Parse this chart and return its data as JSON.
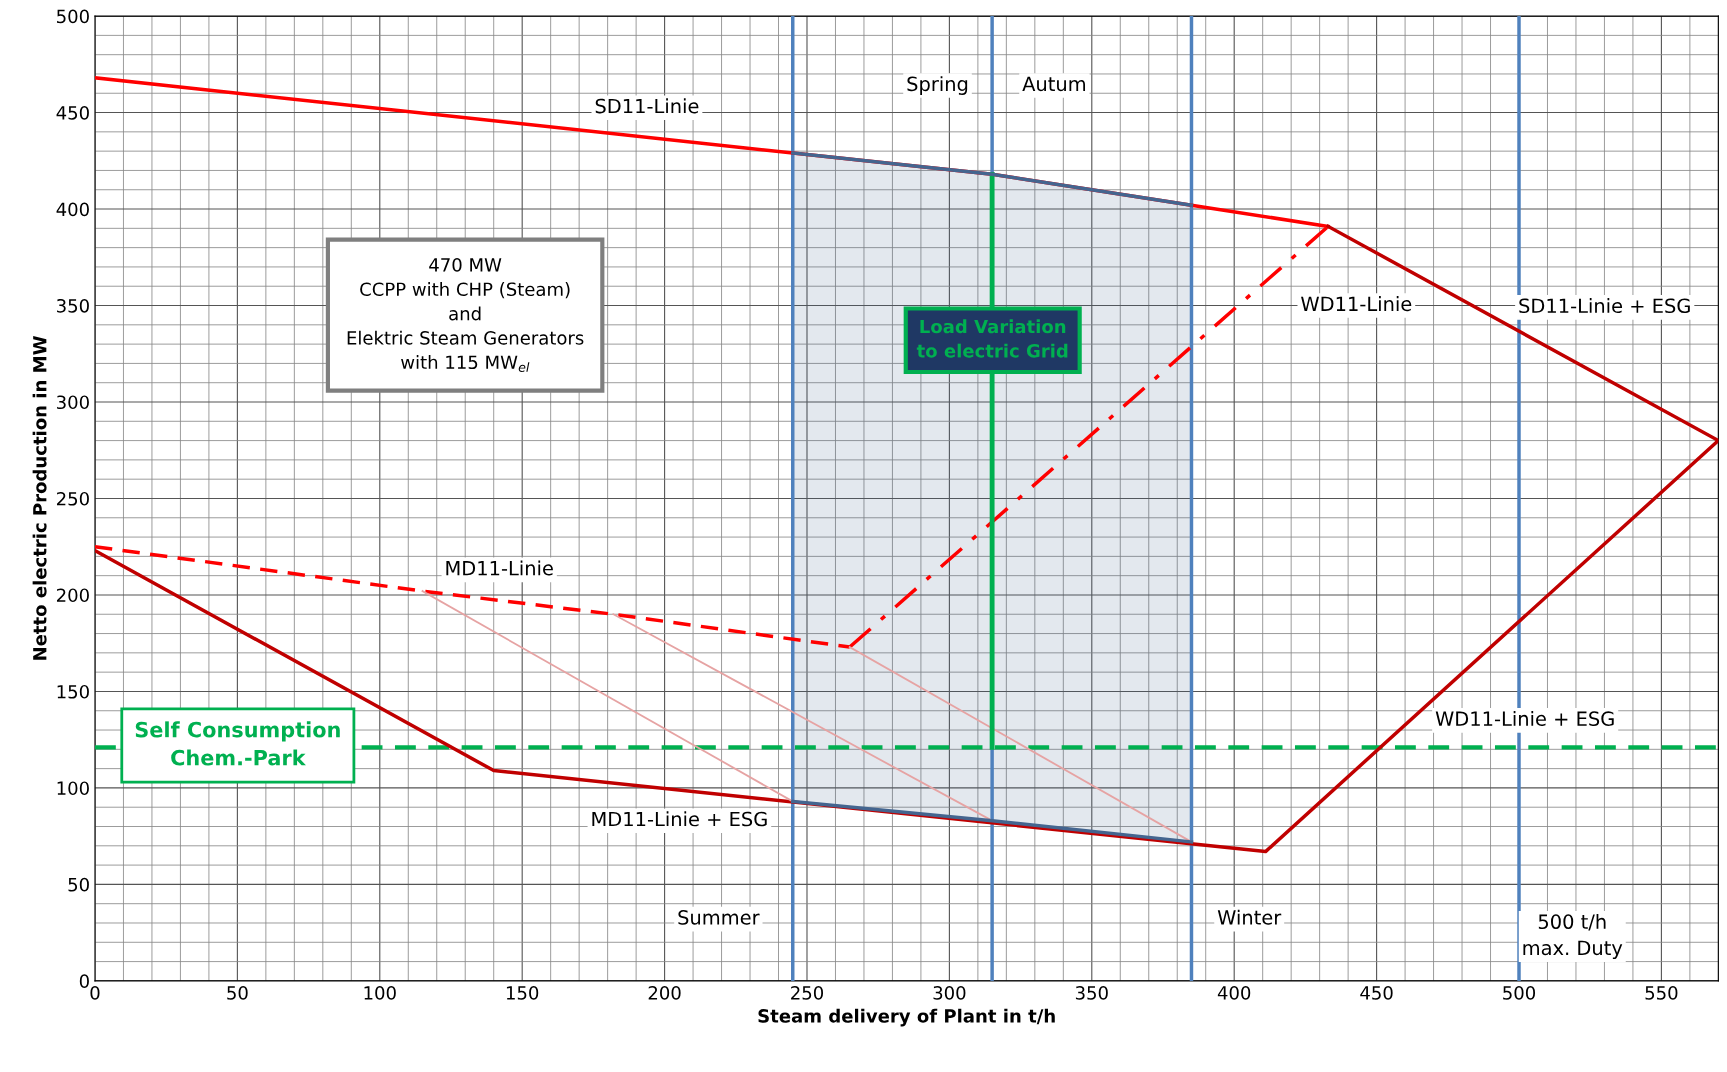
{
  "chart_data": {
    "type": "line",
    "xlabel": "Steam delivery of Plant in t/h",
    "ylabel": "Netto electric Production in MW",
    "xlim": [
      0,
      570
    ],
    "xticks": [
      0,
      50,
      100,
      150,
      200,
      250,
      300,
      350,
      400,
      450,
      500,
      550
    ],
    "ylim": [
      0,
      500
    ],
    "yticks": [
      0,
      50,
      100,
      150,
      200,
      250,
      300,
      350,
      400,
      450,
      500
    ],
    "grid": true,
    "series": [
      {
        "color": "#44658f",
        "x": [
          245,
          315,
          385
        ],
        "values": [
          93,
          83,
          72
        ]
      },
      {
        "color": "#44658f",
        "x": [
          245,
          315,
          385
        ],
        "values": [
          429,
          418,
          402
        ],
        "lower": [
          93,
          83,
          72
        ],
        "upper": [
          429,
          418,
          402
        ]
      },
      {
        "color": "#ff0000",
        "x": [
          0,
          245,
          315,
          385,
          433
        ],
        "values": [
          468,
          429,
          418,
          402,
          391
        ]
      },
      {
        "color": "#c00000",
        "x": [
          433,
          570,
          411,
          140,
          0
        ],
        "values": [
          391,
          280,
          67,
          109,
          223
        ]
      },
      {
        "color": "#ff0000",
        "line_style": "dashed",
        "x": [
          0,
          115,
          182,
          265
        ],
        "values": [
          225,
          202,
          190,
          173
        ]
      },
      {
        "color": "#ff0000",
        "line_style": "dashdot",
        "x": [
          265,
          433
        ],
        "values": [
          173,
          391
        ]
      },
      {
        "color": "#e6a3a3",
        "x": [
          115,
          245
        ],
        "values": [
          202,
          93
        ]
      },
      {
        "color": "#e6a3a3",
        "x": [
          182,
          315
        ],
        "values": [
          190,
          83
        ]
      },
      {
        "color": "#e6a3a3",
        "x": [
          265,
          385
        ],
        "values": [
          173,
          72
        ]
      },
      {
        "color": "#00b050",
        "x": [
          315,
          315
        ],
        "values": [
          121,
          418
        ]
      }
    ],
    "ref_lines": [
      {
        "axis": "x",
        "value": 245,
        "color": "#4f81bd"
      },
      {
        "axis": "x",
        "value": 315,
        "color": "#4f81bd"
      },
      {
        "axis": "x",
        "value": 385,
        "color": "#4f81bd"
      },
      {
        "axis": "x",
        "value": 500,
        "color": "#4f81bd"
      },
      {
        "axis": "y",
        "value": 121,
        "color": "#00b050",
        "line_style": "dashed"
      }
    ],
    "annotations": [
      "470 MW\nCCPP with CHP (Steam)\nand\nElektric Steam Generators\nwith 115 MW$_{el}$",
      "Load Variation\nto electric Grid",
      "Self Consumption\nChem.-Park",
      "SD11-Linie",
      "Spring",
      "Autum",
      "WD11-Linie",
      "SD11-Linie + ESG",
      "MD11-Linie",
      "MD11-Linie + ESG",
      "WD11-Linie + ESG",
      "Summer",
      "Winter",
      "500 t/h\nmax. Duty"
    ]
  }
}
